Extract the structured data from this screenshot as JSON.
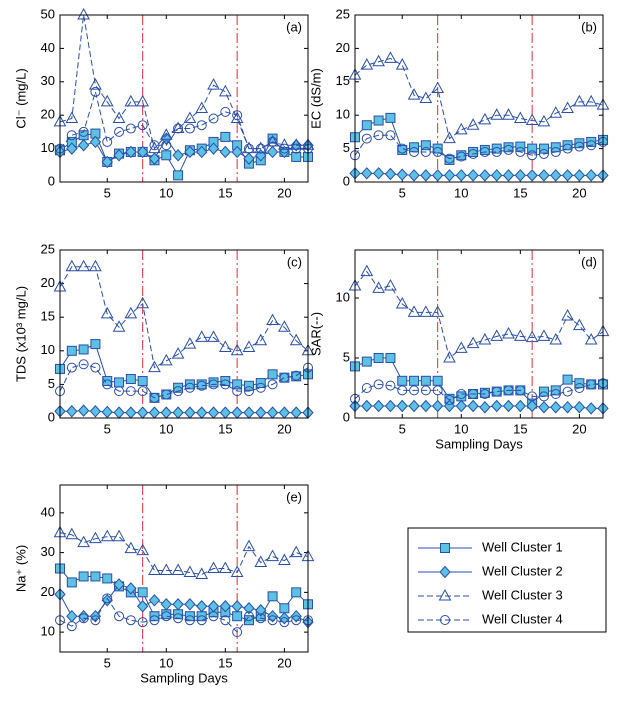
{
  "chart_data": [
    {
      "type": "line",
      "label": "(a)",
      "ylabel": "Cl⁻ (mg/L)",
      "x": [
        1,
        2,
        3,
        4,
        5,
        6,
        7,
        8,
        9,
        10,
        11,
        12,
        13,
        14,
        15,
        16,
        17,
        18,
        19,
        20,
        21,
        22
      ],
      "xlim": [
        1,
        22
      ],
      "xticks": [
        5,
        10,
        15,
        20
      ],
      "ylim": [
        0,
        50
      ],
      "yticks": [
        0,
        10,
        20,
        30,
        40,
        50
      ],
      "vlines": [
        8,
        16
      ],
      "vline_color": "#e0303a",
      "series": [
        {
          "name": "Well Cluster 1",
          "color": "#2a4fa8",
          "marker": "square",
          "marker_fill": "#5cc1e3",
          "linestyle": "solid",
          "values": [
            9.5,
            12,
            14,
            14.5,
            6,
            8.5,
            9,
            9,
            6.5,
            8,
            2,
            9.5,
            10,
            12,
            13.5,
            11,
            5.5,
            6.5,
            13,
            9,
            7.5,
            7.5
          ]
        },
        {
          "name": "Well Cluster 2",
          "color": "#2a4fa8",
          "marker": "diamond",
          "marker_fill": "#5cc1e3",
          "linestyle": "solid",
          "values": [
            9,
            10,
            11,
            12,
            6,
            8,
            9,
            9,
            7,
            13,
            8,
            9,
            9,
            10,
            9,
            9,
            7,
            8,
            9,
            9,
            11,
            11
          ]
        },
        {
          "name": "Well Cluster 3",
          "color": "#2a4fa8",
          "marker": "triangle",
          "marker_fill": "none",
          "linestyle": "dashed",
          "values": [
            18,
            19,
            50,
            29,
            24,
            19,
            24,
            24,
            10,
            14,
            16,
            19,
            22,
            29,
            27,
            19,
            10,
            10,
            12,
            11,
            11,
            11
          ]
        },
        {
          "name": "Well Cluster 4",
          "color": "#2a4fa8",
          "marker": "circle",
          "marker_fill": "none",
          "linestyle": "dashed",
          "values": [
            10,
            14,
            15,
            27,
            12,
            15,
            16,
            17,
            11,
            11,
            16,
            16,
            17,
            19,
            21,
            20,
            10,
            10,
            12,
            10,
            10,
            10
          ]
        }
      ]
    },
    {
      "type": "line",
      "label": "(b)",
      "ylabel": "EC (dS/m)",
      "x": [
        1,
        2,
        3,
        4,
        5,
        6,
        7,
        8,
        9,
        10,
        11,
        12,
        13,
        14,
        15,
        16,
        17,
        18,
        19,
        20,
        21,
        22
      ],
      "xlim": [
        1,
        22
      ],
      "xticks": [
        5,
        10,
        15,
        20
      ],
      "ylim": [
        0,
        25
      ],
      "yticks": [
        0,
        5,
        10,
        15,
        20,
        25
      ],
      "vlines": [
        8,
        16
      ],
      "vline_color": "#e0303a",
      "series": [
        {
          "name": "Well Cluster 1",
          "color": "#2a4fa8",
          "marker": "square",
          "marker_fill": "#5cc1e3",
          "linestyle": "solid",
          "values": [
            6.7,
            8.5,
            9.2,
            9.6,
            4.8,
            5.2,
            5.5,
            5,
            3.3,
            4,
            4.5,
            4.8,
            5,
            5.2,
            5.3,
            5,
            5,
            5.2,
            5.5,
            5.8,
            6,
            6.3
          ]
        },
        {
          "name": "Well Cluster 2",
          "color": "#2a4fa8",
          "marker": "diamond",
          "marker_fill": "#5cc1e3",
          "linestyle": "solid",
          "values": [
            1.3,
            1.3,
            1.3,
            1.2,
            1.1,
            1,
            1,
            1,
            1,
            1,
            1,
            1,
            1,
            1,
            1,
            1,
            1,
            1,
            1,
            1,
            1,
            1
          ]
        },
        {
          "name": "Well Cluster 3",
          "color": "#2a4fa8",
          "marker": "triangle",
          "marker_fill": "none",
          "linestyle": "dashed",
          "values": [
            16,
            17.5,
            18,
            18.5,
            17.5,
            13,
            12.5,
            14,
            6.5,
            7.8,
            8.5,
            9.3,
            10,
            10,
            9.5,
            9.2,
            9,
            10.3,
            11,
            12,
            12,
            11.5
          ]
        },
        {
          "name": "Well Cluster 4",
          "color": "#2a4fa8",
          "marker": "circle",
          "marker_fill": "none",
          "linestyle": "dashed",
          "values": [
            4,
            6.5,
            7,
            7,
            5,
            4.5,
            4.5,
            4.5,
            3.5,
            3.8,
            4.2,
            4.5,
            4.5,
            4.8,
            4.5,
            4,
            4.2,
            4.5,
            5,
            5.3,
            5.5,
            6
          ]
        }
      ]
    },
    {
      "type": "line",
      "label": "(c)",
      "ylabel": "TDS (x10³ mg/L)",
      "x": [
        1,
        2,
        3,
        4,
        5,
        6,
        7,
        8,
        9,
        10,
        11,
        12,
        13,
        14,
        15,
        16,
        17,
        18,
        19,
        20,
        21,
        22
      ],
      "xlim": [
        1,
        22
      ],
      "xticks": [
        5,
        10,
        15,
        20
      ],
      "ylim": [
        0,
        25
      ],
      "yticks": [
        0,
        5,
        10,
        15,
        20,
        25
      ],
      "vlines": [
        8,
        16
      ],
      "vline_color": "#e0303a",
      "series": [
        {
          "name": "Well Cluster 1",
          "color": "#2a4fa8",
          "marker": "square",
          "marker_fill": "#5cc1e3",
          "linestyle": "solid",
          "values": [
            7.3,
            10,
            10.2,
            11,
            5.5,
            5.3,
            5.8,
            5.5,
            3,
            3.5,
            4.5,
            5,
            5,
            5.3,
            5.5,
            5,
            4.8,
            5.2,
            6.5,
            6,
            6.2,
            6.5
          ]
        },
        {
          "name": "Well Cluster 2",
          "color": "#2a4fa8",
          "marker": "diamond",
          "marker_fill": "#5cc1e3",
          "linestyle": "solid",
          "values": [
            1,
            1,
            1.1,
            1,
            0.9,
            0.8,
            0.8,
            0.8,
            0.8,
            0.8,
            0.8,
            0.8,
            0.8,
            0.8,
            0.8,
            0.8,
            0.8,
            0.8,
            0.8,
            0.8,
            0.8,
            0.8
          ]
        },
        {
          "name": "Well Cluster 3",
          "color": "#2a4fa8",
          "marker": "triangle",
          "marker_fill": "none",
          "linestyle": "dashed",
          "values": [
            19.5,
            22.5,
            22.5,
            22.5,
            15.5,
            13.5,
            15.5,
            17,
            7.5,
            8.5,
            9.5,
            11,
            12,
            12,
            10.5,
            10,
            10.5,
            11.5,
            14.5,
            13.5,
            11.5,
            10
          ]
        },
        {
          "name": "Well Cluster 4",
          "color": "#2a4fa8",
          "marker": "circle",
          "marker_fill": "none",
          "linestyle": "dashed",
          "values": [
            4,
            7.5,
            8,
            7.5,
            5,
            4,
            4,
            4,
            3,
            3.5,
            4,
            4.5,
            4.8,
            5,
            5,
            4,
            4,
            4.5,
            5,
            6,
            6.3,
            7.5
          ]
        }
      ]
    },
    {
      "type": "line",
      "label": "(d)",
      "ylabel": "SAR(--)",
      "xlabel": "Sampling Days",
      "x": [
        1,
        2,
        3,
        4,
        5,
        6,
        7,
        8,
        9,
        10,
        11,
        12,
        13,
        14,
        15,
        16,
        17,
        18,
        19,
        20,
        21,
        22
      ],
      "xlim": [
        1,
        22
      ],
      "xticks": [
        5,
        10,
        15,
        20
      ],
      "ylim": [
        0,
        14
      ],
      "yticks": [
        0,
        5,
        10
      ],
      "vlines": [
        8,
        16
      ],
      "vline_color": "#e0303a",
      "series": [
        {
          "name": "Well Cluster 1",
          "color": "#2a4fa8",
          "marker": "square",
          "marker_fill": "#5cc1e3",
          "linestyle": "solid",
          "values": [
            4.3,
            4.7,
            5,
            5,
            3.1,
            3.1,
            3.1,
            3.1,
            1.6,
            1.8,
            2,
            2.1,
            2.2,
            2.3,
            2.3,
            1.2,
            2.2,
            2.3,
            3.2,
            2.9,
            2.8,
            2.8
          ]
        },
        {
          "name": "Well Cluster 2",
          "color": "#2a4fa8",
          "marker": "diamond",
          "marker_fill": "#5cc1e3",
          "linestyle": "solid",
          "values": [
            1,
            1,
            1,
            1,
            1,
            1,
            1,
            1,
            1,
            1,
            1,
            0.9,
            1,
            1,
            1,
            1,
            0.9,
            0.9,
            0.9,
            0.9,
            0.8,
            0.8
          ]
        },
        {
          "name": "Well Cluster 3",
          "color": "#2a4fa8",
          "marker": "triangle",
          "marker_fill": "none",
          "linestyle": "dashed",
          "values": [
            11,
            12.2,
            10.8,
            11,
            9.5,
            8.8,
            8.8,
            8.8,
            5,
            5.8,
            6.2,
            6.5,
            6.8,
            7,
            6.8,
            6.7,
            6.8,
            6.5,
            8.5,
            7.7,
            6.5,
            7.2
          ]
        },
        {
          "name": "Well Cluster 4",
          "color": "#2a4fa8",
          "marker": "circle",
          "marker_fill": "none",
          "linestyle": "dashed",
          "values": [
            1.6,
            2.5,
            2.8,
            2.7,
            2.3,
            2.3,
            2.3,
            2.3,
            1.5,
            2,
            2,
            2,
            2.2,
            2.3,
            2.3,
            1.8,
            1.8,
            2,
            2.2,
            2.5,
            2.8,
            2.9
          ]
        }
      ]
    },
    {
      "type": "line",
      "label": "(e)",
      "ylabel": "Na⁺ (%)",
      "xlabel": "Sampling Days",
      "x": [
        1,
        2,
        3,
        4,
        5,
        6,
        7,
        8,
        9,
        10,
        11,
        12,
        13,
        14,
        15,
        16,
        17,
        18,
        19,
        20,
        21,
        22
      ],
      "xlim": [
        1,
        22
      ],
      "xticks": [
        5,
        10,
        15,
        20
      ],
      "ylim": [
        5,
        47
      ],
      "yticks": [
        10,
        20,
        30,
        40
      ],
      "vlines": [
        8,
        16
      ],
      "vline_color": "#e0303a",
      "series": [
        {
          "name": "Well Cluster 1",
          "color": "#2a4fa8",
          "marker": "square",
          "marker_fill": "#5cc1e3",
          "linestyle": "solid",
          "values": [
            26,
            22.5,
            24,
            24,
            23.5,
            21.5,
            20,
            20,
            14,
            14.5,
            14.5,
            14,
            14,
            15,
            15,
            14,
            13,
            14,
            19,
            16,
            20,
            17
          ]
        },
        {
          "name": "Well Cluster 2",
          "color": "#2a4fa8",
          "marker": "diamond",
          "marker_fill": "#5cc1e3",
          "linestyle": "solid",
          "values": [
            19.5,
            14,
            14,
            14,
            18,
            22,
            21,
            16.5,
            18,
            17,
            17,
            17,
            16.5,
            16.5,
            16.5,
            16.5,
            16,
            15.5,
            14,
            13.5,
            14,
            12.5
          ]
        },
        {
          "name": "Well Cluster 3",
          "color": "#2a4fa8",
          "marker": "triangle",
          "marker_fill": "none",
          "linestyle": "dashed",
          "values": [
            35,
            34.5,
            32.5,
            33.5,
            34,
            34,
            31,
            30.5,
            25.5,
            25.5,
            25.5,
            25,
            24.5,
            26,
            26,
            25,
            31.5,
            27.5,
            29,
            28,
            30,
            29
          ]
        },
        {
          "name": "Well Cluster 4",
          "color": "#2a4fa8",
          "marker": "circle",
          "marker_fill": "none",
          "linestyle": "dashed",
          "values": [
            13,
            11.5,
            13.5,
            13,
            18.5,
            14,
            13,
            12.5,
            13,
            14,
            13.5,
            13,
            13,
            14,
            13,
            10,
            14,
            13.5,
            13,
            12.5,
            13,
            13
          ]
        }
      ]
    }
  ]
}
